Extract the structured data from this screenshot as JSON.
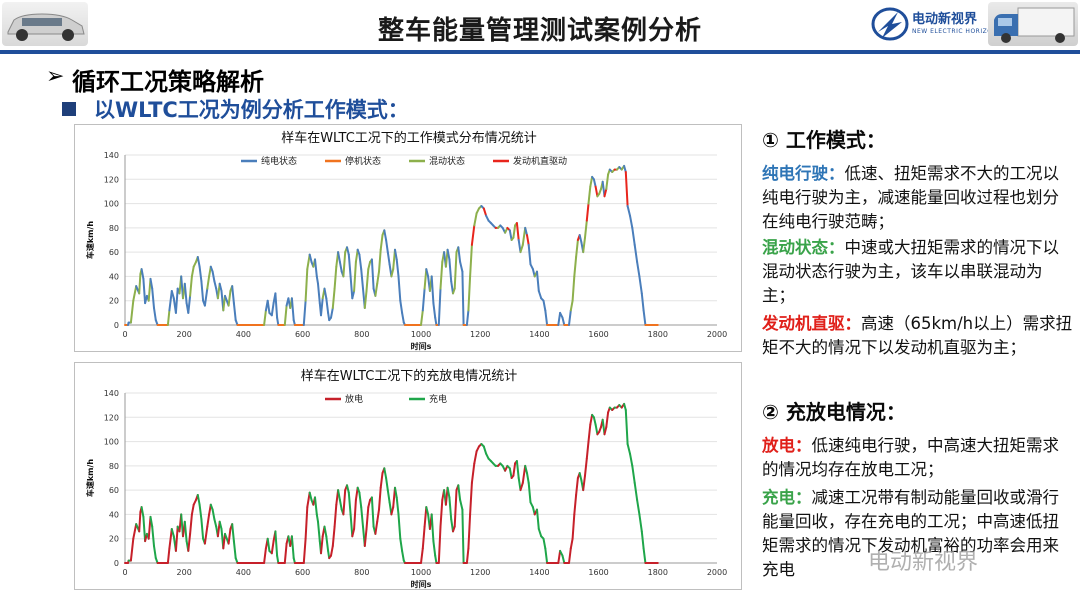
{
  "header": {
    "title": "整车能量管理测试案例分析",
    "logo_text": "电动新视界",
    "logo_sub": "NEW ELECTRIC HORIZON"
  },
  "section": {
    "h1": "循环工况策略解析",
    "h2": "以WLTC工况为例分析工作模式："
  },
  "colors": {
    "brand_blue": "#1f4e9a",
    "pure_ev": "#4a7ebb",
    "stop": "#f0731f",
    "hybrid": "#8db04c",
    "engine": "#e8251c",
    "discharge": "#c6202a",
    "charge": "#1fa64a"
  },
  "chart_data": [
    {
      "type": "line",
      "title": "样车在WLTC工况下的工作模式分布情况统计",
      "xlabel": "时间s",
      "ylabel": "车速km/h",
      "xlim": [
        0,
        2000
      ],
      "ylim": [
        0,
        140
      ],
      "xticks": [
        "0",
        "200",
        "400",
        "600",
        "800",
        "1000",
        "1200",
        "1400",
        "1600",
        "1800",
        "2000"
      ],
      "yticks": [
        "0",
        "20",
        "40",
        "60",
        "80",
        "100",
        "120",
        "140"
      ],
      "legend": [
        "纯电状态",
        "停机状态",
        "混动状态",
        "发动机直驱动"
      ],
      "series": [
        {
          "name": "纯电状态",
          "color": "#4a7ebb"
        },
        {
          "name": "停机状态",
          "color": "#f0731f"
        },
        {
          "name": "混动状态",
          "color": "#8db04c"
        },
        {
          "name": "发动机直驱动",
          "color": "#e8251c"
        }
      ]
    },
    {
      "type": "line",
      "title": "样车在WLTC工况下的充放电情况统计",
      "xlabel": "时间s",
      "ylabel": "车速km/h",
      "xlim": [
        0,
        2000
      ],
      "ylim": [
        0,
        140
      ],
      "xticks": [
        "0",
        "200",
        "400",
        "600",
        "800",
        "1000",
        "1200",
        "1400",
        "1600",
        "1800",
        "2000"
      ],
      "yticks": [
        "0",
        "20",
        "40",
        "60",
        "80",
        "100",
        "120",
        "140"
      ],
      "legend": [
        "放电",
        "充电"
      ],
      "series": [
        {
          "name": "放电",
          "color": "#c6202a"
        },
        {
          "name": "充电",
          "color": "#1fa64a"
        }
      ]
    }
  ],
  "wltc_profile": [
    [
      0,
      0
    ],
    [
      10,
      0
    ],
    [
      12,
      2
    ],
    [
      20,
      2
    ],
    [
      28,
      20
    ],
    [
      38,
      32
    ],
    [
      48,
      26
    ],
    [
      52,
      42
    ],
    [
      56,
      46
    ],
    [
      62,
      38
    ],
    [
      68,
      18
    ],
    [
      74,
      24
    ],
    [
      80,
      20
    ],
    [
      86,
      38
    ],
    [
      92,
      30
    ],
    [
      98,
      14
    ],
    [
      104,
      4
    ],
    [
      110,
      0
    ],
    [
      145,
      0
    ],
    [
      150,
      12
    ],
    [
      158,
      28
    ],
    [
      165,
      22
    ],
    [
      172,
      10
    ],
    [
      178,
      30
    ],
    [
      184,
      26
    ],
    [
      190,
      40
    ],
    [
      196,
      22
    ],
    [
      202,
      34
    ],
    [
      208,
      18
    ],
    [
      214,
      10
    ],
    [
      220,
      24
    ],
    [
      226,
      40
    ],
    [
      232,
      48
    ],
    [
      240,
      52
    ],
    [
      246,
      56
    ],
    [
      252,
      48
    ],
    [
      258,
      36
    ],
    [
      264,
      20
    ],
    [
      270,
      16
    ],
    [
      278,
      30
    ],
    [
      284,
      40
    ],
    [
      290,
      48
    ],
    [
      296,
      44
    ],
    [
      302,
      36
    ],
    [
      308,
      30
    ],
    [
      314,
      22
    ],
    [
      320,
      34
    ],
    [
      326,
      28
    ],
    [
      332,
      12
    ],
    [
      338,
      24
    ],
    [
      344,
      20
    ],
    [
      350,
      16
    ],
    [
      356,
      28
    ],
    [
      362,
      32
    ],
    [
      368,
      18
    ],
    [
      374,
      4
    ],
    [
      380,
      0
    ],
    [
      470,
      0
    ],
    [
      476,
      12
    ],
    [
      482,
      20
    ],
    [
      488,
      10
    ],
    [
      496,
      8
    ],
    [
      502,
      18
    ],
    [
      508,
      26
    ],
    [
      514,
      6
    ],
    [
      518,
      0
    ],
    [
      540,
      0
    ],
    [
      546,
      16
    ],
    [
      552,
      22
    ],
    [
      558,
      14
    ],
    [
      564,
      22
    ],
    [
      570,
      4
    ],
    [
      574,
      0
    ],
    [
      604,
      0
    ],
    [
      610,
      20
    ],
    [
      616,
      46
    ],
    [
      624,
      58
    ],
    [
      630,
      52
    ],
    [
      636,
      48
    ],
    [
      642,
      54
    ],
    [
      648,
      40
    ],
    [
      652,
      34
    ],
    [
      658,
      18
    ],
    [
      662,
      8
    ],
    [
      668,
      22
    ],
    [
      674,
      30
    ],
    [
      680,
      22
    ],
    [
      686,
      10
    ],
    [
      690,
      4
    ],
    [
      696,
      6
    ],
    [
      702,
      14
    ],
    [
      708,
      30
    ],
    [
      714,
      48
    ],
    [
      720,
      60
    ],
    [
      726,
      52
    ],
    [
      732,
      44
    ],
    [
      738,
      40
    ],
    [
      744,
      60
    ],
    [
      750,
      64
    ],
    [
      756,
      58
    ],
    [
      762,
      40
    ],
    [
      768,
      22
    ],
    [
      774,
      28
    ],
    [
      780,
      52
    ],
    [
      786,
      62
    ],
    [
      792,
      58
    ],
    [
      798,
      46
    ],
    [
      804,
      30
    ],
    [
      810,
      14
    ],
    [
      816,
      28
    ],
    [
      822,
      46
    ],
    [
      828,
      52
    ],
    [
      834,
      54
    ],
    [
      840,
      30
    ],
    [
      846,
      24
    ],
    [
      852,
      34
    ],
    [
      858,
      44
    ],
    [
      864,
      62
    ],
    [
      870,
      74
    ],
    [
      876,
      78
    ],
    [
      882,
      70
    ],
    [
      888,
      60
    ],
    [
      894,
      50
    ],
    [
      900,
      40
    ],
    [
      906,
      46
    ],
    [
      912,
      62
    ],
    [
      918,
      54
    ],
    [
      924,
      40
    ],
    [
      930,
      20
    ],
    [
      936,
      10
    ],
    [
      942,
      2
    ],
    [
      946,
      0
    ],
    [
      1000,
      0
    ],
    [
      1006,
      12
    ],
    [
      1012,
      30
    ],
    [
      1018,
      46
    ],
    [
      1024,
      40
    ],
    [
      1030,
      28
    ],
    [
      1036,
      40
    ],
    [
      1042,
      18
    ],
    [
      1048,
      6
    ],
    [
      1052,
      0
    ],
    [
      1060,
      0
    ],
    [
      1066,
      30
    ],
    [
      1072,
      52
    ],
    [
      1078,
      60
    ],
    [
      1084,
      48
    ],
    [
      1090,
      62
    ],
    [
      1096,
      54
    ],
    [
      1102,
      36
    ],
    [
      1108,
      26
    ],
    [
      1114,
      30
    ],
    [
      1120,
      60
    ],
    [
      1126,
      64
    ],
    [
      1132,
      52
    ],
    [
      1140,
      44
    ],
    [
      1144,
      0
    ],
    [
      1155,
      0
    ],
    [
      1160,
      12
    ],
    [
      1166,
      40
    ],
    [
      1172,
      66
    ],
    [
      1180,
      82
    ],
    [
      1188,
      92
    ],
    [
      1196,
      96
    ],
    [
      1204,
      98
    ],
    [
      1212,
      96
    ],
    [
      1220,
      90
    ],
    [
      1228,
      86
    ],
    [
      1236,
      84
    ],
    [
      1244,
      82
    ],
    [
      1252,
      80
    ],
    [
      1260,
      80
    ],
    [
      1268,
      82
    ],
    [
      1276,
      80
    ],
    [
      1284,
      76
    ],
    [
      1292,
      80
    ],
    [
      1300,
      78
    ],
    [
      1306,
      70
    ],
    [
      1312,
      72
    ],
    [
      1318,
      82
    ],
    [
      1324,
      84
    ],
    [
      1330,
      70
    ],
    [
      1336,
      60
    ],
    [
      1344,
      66
    ],
    [
      1352,
      80
    ],
    [
      1358,
      74
    ],
    [
      1364,
      66
    ],
    [
      1370,
      50
    ],
    [
      1378,
      46
    ],
    [
      1384,
      40
    ],
    [
      1392,
      44
    ],
    [
      1398,
      28
    ],
    [
      1406,
      22
    ],
    [
      1414,
      20
    ],
    [
      1420,
      12
    ],
    [
      1426,
      0
    ],
    [
      1464,
      0
    ],
    [
      1470,
      10
    ],
    [
      1478,
      6
    ],
    [
      1484,
      0
    ],
    [
      1500,
      0
    ],
    [
      1506,
      12
    ],
    [
      1512,
      20
    ],
    [
      1518,
      40
    ],
    [
      1524,
      56
    ],
    [
      1530,
      70
    ],
    [
      1536,
      74
    ],
    [
      1542,
      68
    ],
    [
      1548,
      60
    ],
    [
      1554,
      72
    ],
    [
      1560,
      86
    ],
    [
      1566,
      100
    ],
    [
      1572,
      114
    ],
    [
      1578,
      122
    ],
    [
      1584,
      120
    ],
    [
      1590,
      114
    ],
    [
      1596,
      106
    ],
    [
      1602,
      108
    ],
    [
      1608,
      112
    ],
    [
      1614,
      118
    ],
    [
      1620,
      106
    ],
    [
      1626,
      112
    ],
    [
      1632,
      124
    ],
    [
      1638,
      128
    ],
    [
      1646,
      126
    ],
    [
      1654,
      128
    ],
    [
      1662,
      128
    ],
    [
      1670,
      130
    ],
    [
      1678,
      128
    ],
    [
      1686,
      131
    ],
    [
      1692,
      126
    ],
    [
      1698,
      98
    ],
    [
      1706,
      90
    ],
    [
      1714,
      80
    ],
    [
      1722,
      66
    ],
    [
      1730,
      52
    ],
    [
      1738,
      40
    ],
    [
      1746,
      26
    ],
    [
      1752,
      12
    ],
    [
      1758,
      0
    ],
    [
      1800,
      0
    ]
  ],
  "right": {
    "sec1_title": "① 工作模式：",
    "p1_term": "纯电行驶：",
    "p1_text": "低速、扭矩需求不大的工况以纯电行驶为主，减速能量回收过程也划分在纯电行驶范畴；",
    "p2_term": "混动状态：",
    "p2_text": "中速或大扭矩需求的情况下以混动状态行驶为主，该车以串联混动为主；",
    "p3_term": "发动机直驱：",
    "p3_text": "高速（65km/h以上）需求扭矩不大的情况下以发动机直驱为主；",
    "sec2_title": "② 充放电情况：",
    "p4_term": "放电：",
    "p4_text": "低速纯电行驶，中高速大扭矩需求的情况均存在放电工况；",
    "p5_term": "充电：",
    "p5_text": "减速工况带有制动能量回收或滑行能量回收，存在充电的工况；中高速低扭矩需求的情况下发动机富裕的功率会用来充电"
  },
  "watermark": "电动新视界"
}
